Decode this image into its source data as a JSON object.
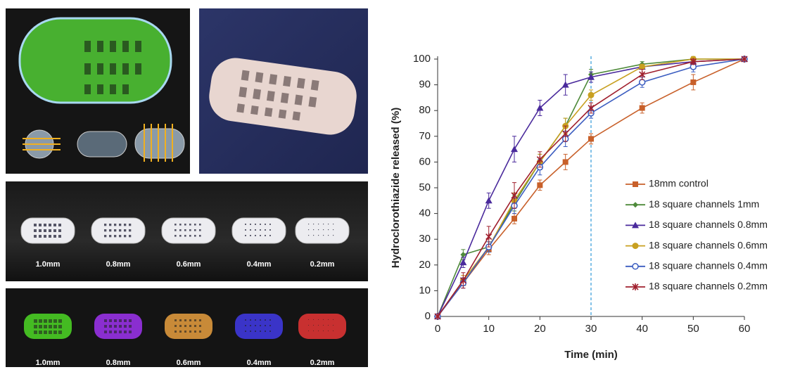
{
  "chart_data": {
    "type": "line",
    "xlabel": "Time (min)",
    "ylabel": "Hydroclorothiazide released (%)",
    "x": [
      0,
      5,
      10,
      15,
      20,
      25,
      30,
      40,
      50,
      60
    ],
    "xlim": [
      0,
      60
    ],
    "xticks": [
      0,
      10,
      20,
      30,
      40,
      50,
      60
    ],
    "ylim": [
      0,
      100
    ],
    "yticks": [
      0,
      10,
      20,
      30,
      40,
      50,
      60,
      70,
      80,
      90,
      100
    ],
    "vline": {
      "x": 30,
      "color": "#5aaee0"
    },
    "legend": "right",
    "series": [
      {
        "name": "18mm control",
        "color": "#c8602a",
        "marker": "square",
        "values": [
          0,
          13,
          26,
          38,
          51,
          60,
          69,
          81,
          91,
          100
        ],
        "errors": [
          0,
          1,
          2,
          2,
          2,
          3,
          2,
          2,
          3,
          0
        ]
      },
      {
        "name": "18 square channels 1mm",
        "color": "#4e8a3a",
        "marker": "diamond",
        "values": [
          0,
          24,
          27,
          44,
          60,
          74,
          94,
          98,
          100,
          100
        ],
        "errors": [
          0,
          2,
          2,
          3,
          3,
          3,
          2,
          1,
          1,
          0
        ]
      },
      {
        "name": "18 square channels 0.8mm",
        "color": "#4a2a9c",
        "marker": "triangle",
        "values": [
          0,
          21,
          45,
          65,
          81,
          90,
          93,
          97,
          99,
          100
        ],
        "errors": [
          0,
          2,
          3,
          5,
          3,
          4,
          2,
          1,
          1,
          0
        ]
      },
      {
        "name": "18 square channels 0.6mm",
        "color": "#c8a020",
        "marker": "circle",
        "values": [
          0,
          14,
          27,
          45,
          60,
          74,
          86,
          97,
          100,
          100
        ],
        "errors": [
          0,
          2,
          2,
          3,
          3,
          3,
          2,
          1,
          1,
          0
        ]
      },
      {
        "name": "18 square channels 0.4mm",
        "color": "#3a5cc0",
        "marker": "open-circle",
        "values": [
          0,
          13,
          27,
          43,
          58,
          69,
          79,
          91,
          97,
          100
        ],
        "errors": [
          0,
          2,
          2,
          3,
          3,
          3,
          2,
          2,
          2,
          0
        ]
      },
      {
        "name": "18 square channels 0.2mm",
        "color": "#a0202e",
        "marker": "star",
        "values": [
          0,
          14,
          31,
          47,
          61,
          71,
          81,
          94,
          99,
          100
        ],
        "errors": [
          0,
          3,
          4,
          5,
          3,
          3,
          2,
          2,
          1,
          0
        ]
      }
    ]
  },
  "photo": {
    "labels": [
      "1.0mm",
      "0.8mm",
      "0.6mm",
      "0.4mm",
      "0.2mm"
    ]
  },
  "render": {
    "labels": [
      "1.0mm",
      "0.8mm",
      "0.6mm",
      "0.4mm",
      "0.2mm"
    ]
  }
}
